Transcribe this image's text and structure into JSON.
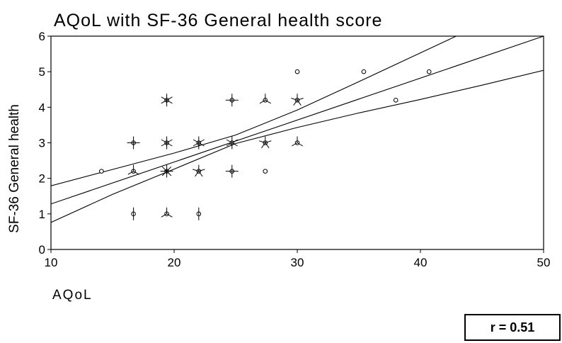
{
  "chart_data": {
    "type": "scatter",
    "title": "AQoL with SF-36 General health score",
    "xlabel": "AQoL",
    "ylabel": "SF-36 General health",
    "xlim": [
      10,
      50
    ],
    "ylim": [
      0,
      6
    ],
    "xticks": [
      10,
      20,
      30,
      40,
      50
    ],
    "yticks": [
      0,
      1,
      2,
      3,
      4,
      5,
      6
    ],
    "points": [
      {
        "x": 14.1,
        "y": 2.2,
        "count": 1
      },
      {
        "x": 16.7,
        "y": 3.0,
        "count": 4
      },
      {
        "x": 16.7,
        "y": 2.2,
        "count": 3
      },
      {
        "x": 16.7,
        "y": 1.0,
        "count": 2
      },
      {
        "x": 19.4,
        "y": 4.2,
        "count": 6
      },
      {
        "x": 19.4,
        "y": 3.0,
        "count": 6
      },
      {
        "x": 19.4,
        "y": 2.2,
        "count": 8
      },
      {
        "x": 19.4,
        "y": 1.0,
        "count": 3
      },
      {
        "x": 22.0,
        "y": 3.0,
        "count": 6
      },
      {
        "x": 22.0,
        "y": 2.2,
        "count": 5
      },
      {
        "x": 22.0,
        "y": 1.0,
        "count": 2
      },
      {
        "x": 24.7,
        "y": 4.2,
        "count": 4
      },
      {
        "x": 24.7,
        "y": 3.0,
        "count": 6
      },
      {
        "x": 24.7,
        "y": 2.2,
        "count": 4
      },
      {
        "x": 27.4,
        "y": 4.2,
        "count": 3
      },
      {
        "x": 27.4,
        "y": 3.0,
        "count": 5
      },
      {
        "x": 27.4,
        "y": 2.2,
        "count": 1
      },
      {
        "x": 30.0,
        "y": 5.0,
        "count": 1
      },
      {
        "x": 30.0,
        "y": 4.2,
        "count": 5
      },
      {
        "x": 30.0,
        "y": 3.0,
        "count": 3
      },
      {
        "x": 35.4,
        "y": 5.0,
        "count": 1
      },
      {
        "x": 38.0,
        "y": 4.2,
        "count": 1
      },
      {
        "x": 40.7,
        "y": 5.0,
        "count": 1
      }
    ],
    "fit_line": {
      "x": [
        10,
        50
      ],
      "y": [
        1.28,
        6.0
      ]
    },
    "confidence_band": {
      "upper": {
        "x": [
          10,
          15,
          20,
          25,
          30,
          35,
          40,
          42.9
        ],
        "y": [
          1.79,
          2.25,
          2.71,
          3.22,
          3.92,
          4.72,
          5.53,
          6.0
        ]
      },
      "lower": {
        "x": [
          10,
          15,
          20,
          25,
          30,
          35,
          40,
          45,
          50
        ],
        "y": [
          0.76,
          1.55,
          2.26,
          2.98,
          3.43,
          3.84,
          4.22,
          4.62,
          5.04
        ]
      }
    },
    "grid": false,
    "legend": "none",
    "annotation": "r = 0.51"
  }
}
